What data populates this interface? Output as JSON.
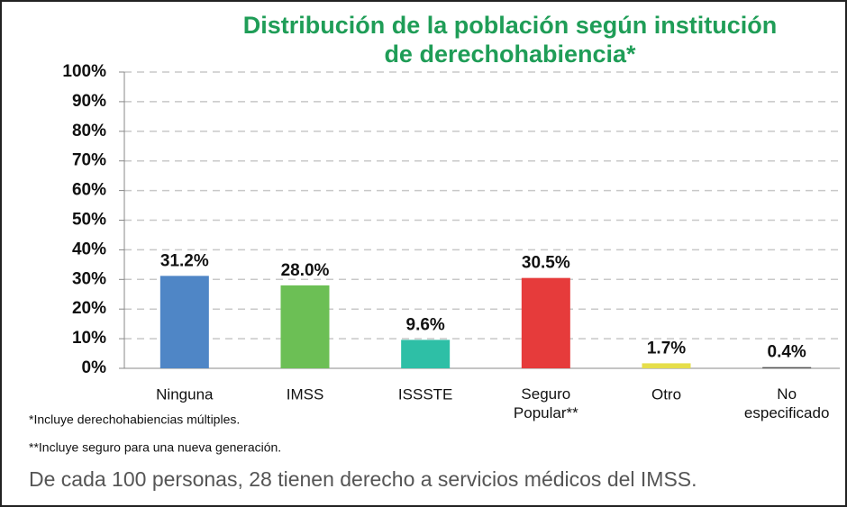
{
  "chart_data": {
    "type": "bar",
    "title": [
      "Distribución de la población según institución",
      "de derechohabiencia*"
    ],
    "categories": [
      "Ninguna",
      "IMSS",
      "ISSSTE",
      "Seguro Popular**",
      "Otro",
      "No especificado"
    ],
    "values": [
      31.2,
      28.0,
      9.6,
      30.5,
      1.7,
      0.4
    ],
    "value_labels": [
      "31.2%",
      "28.0%",
      "9.6%",
      "30.5%",
      "1.7%",
      "0.4%"
    ],
    "colors": [
      "#4f86c6",
      "#6cbf55",
      "#2ebfa6",
      "#e63b3b",
      "#e6de4a",
      "#555555"
    ],
    "ylim": [
      0,
      100
    ],
    "yticks": [
      {
        "value": 0,
        "label": "0%"
      },
      {
        "value": 10,
        "label": "10%"
      },
      {
        "value": 20,
        "label": "20%"
      },
      {
        "value": 30,
        "label": "30%"
      },
      {
        "value": 40,
        "label": "40%"
      },
      {
        "value": 50,
        "label": "50%"
      },
      {
        "value": 60,
        "label": "60%"
      },
      {
        "value": 70,
        "label": "70%"
      },
      {
        "value": 80,
        "label": "80%"
      },
      {
        "value": 90,
        "label": "90%"
      },
      {
        "value": 100,
        "label": "100%"
      }
    ],
    "grid": true,
    "notes": [
      "*Incluye derechohabiencias múltiples.",
      "**Incluye seguro para una nueva generación."
    ],
    "caption": "De cada 100 personas, 28 tienen derecho a servicios médicos del IMSS."
  }
}
